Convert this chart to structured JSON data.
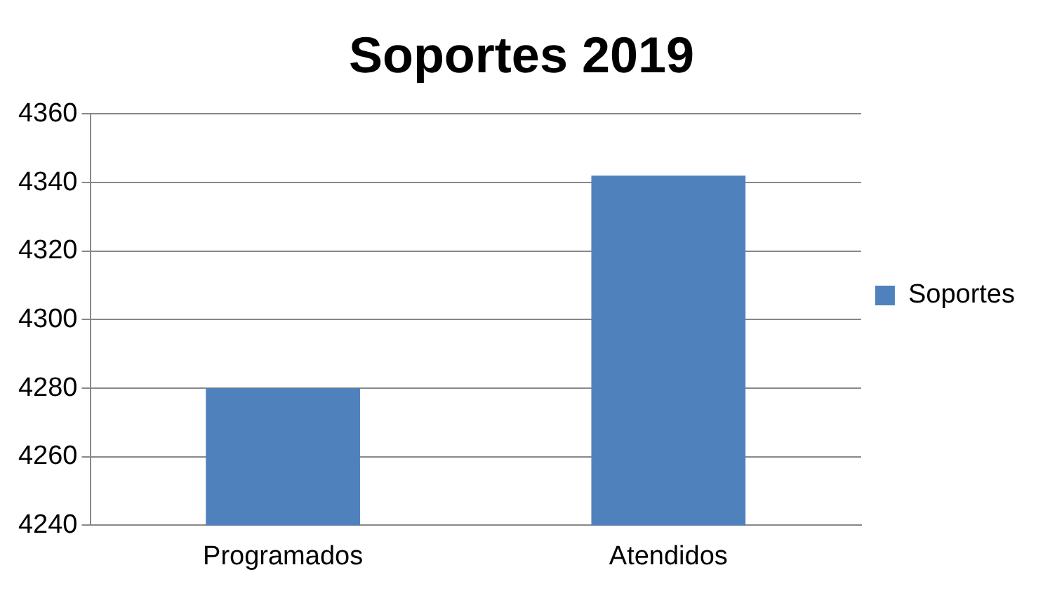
{
  "chart_data": {
    "type": "bar",
    "title": "Soportes 2019",
    "categories": [
      "Programados",
      "Atendidos"
    ],
    "series": [
      {
        "name": "Soportes",
        "color": "#4f81bd",
        "values": [
          4280,
          4342
        ]
      }
    ],
    "ylim": [
      4240,
      4360
    ],
    "yticks": [
      4240,
      4260,
      4280,
      4300,
      4320,
      4340,
      4360
    ],
    "grid": "y",
    "legend": "right"
  }
}
